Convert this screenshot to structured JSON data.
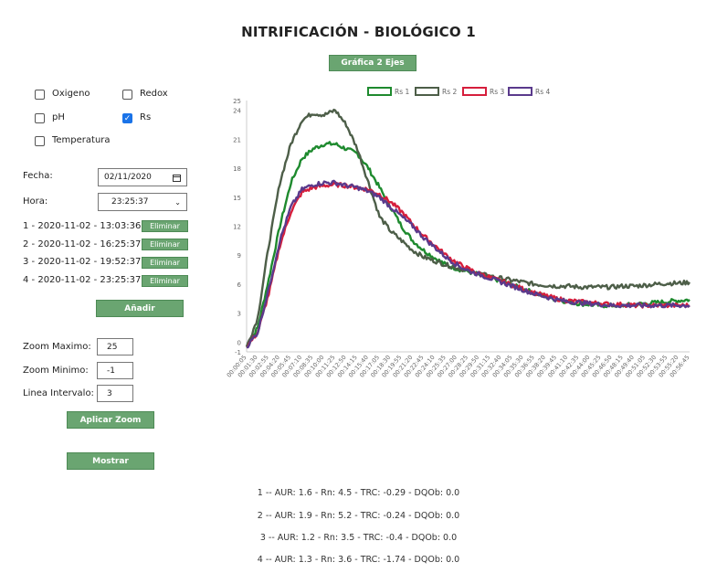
{
  "title": "NITRIFICACIÓN - BIOLÓGICO 1",
  "top_button": "Gráfica 2 Ejes",
  "checkboxes": {
    "oxigeno": {
      "label": "Oxigeno",
      "checked": false
    },
    "redox": {
      "label": "Redox",
      "checked": false
    },
    "ph": {
      "label": "pH",
      "checked": false
    },
    "rs": {
      "label": "Rs",
      "checked": true
    },
    "temperatura": {
      "label": "Temperatura",
      "checked": false
    }
  },
  "fecha": {
    "label": "Fecha:",
    "value": "02/11/2020"
  },
  "hora": {
    "label": "Hora:",
    "value": "23:25:37"
  },
  "records": [
    {
      "text": "1 - 2020-11-02 - 13:03:36",
      "button": "Eliminar"
    },
    {
      "text": "2 - 2020-11-02 - 16:25:37",
      "button": "Eliminar"
    },
    {
      "text": "3 - 2020-11-02 - 19:52:37",
      "button": "Eliminar"
    },
    {
      "text": "4 - 2020-11-02 - 23:25:37",
      "button": "Eliminar"
    }
  ],
  "add_button": "Añadir",
  "zoom": {
    "max_label": "Zoom Maximo:",
    "max_value": "25",
    "min_label": "Zoom Minimo:",
    "min_value": "-1",
    "interval_label": "Linea Intervalo:",
    "interval_value": "3"
  },
  "apply_zoom_button": "Aplicar Zoom",
  "show_button": "Mostrar",
  "results": [
    "1 -- AUR: 1.6 - Rn: 4.5 - TRC: -0.29 - DQOb: 0.0",
    "2 -- AUR: 1.9 - Rn: 5.2 - TRC: -0.24 - DQOb: 0.0",
    "3 -- AUR: 1.2 - Rn: 3.5 - TRC: -0.4 - DQOb: 0.0",
    "4 -- AUR: 1.3 - Rn: 3.6 - TRC: -1.74 - DQOb: 0.0"
  ],
  "chart_data": {
    "type": "line",
    "title": "",
    "xlabel": "",
    "ylabel": "",
    "ylim": [
      -1,
      25
    ],
    "y_ticks": [
      -1,
      0,
      3,
      6,
      9,
      12,
      15,
      18,
      21,
      24,
      25
    ],
    "x_ticks": [
      "00:00:05",
      "00:01:30",
      "00:02:55",
      "00:04:20",
      "00:05:45",
      "00:07:10",
      "00:08:35",
      "00:10:00",
      "00:11:25",
      "00:12:50",
      "00:14:15",
      "00:15:40",
      "00:17:05",
      "00:18:30",
      "00:19:55",
      "00:21:20",
      "00:22:45",
      "00:24:10",
      "00:25:35",
      "00:27:00",
      "00:28:25",
      "00:29:50",
      "00:31:15",
      "00:32:40",
      "00:34:05",
      "00:35:30",
      "00:36:55",
      "00:38:20",
      "00:39:45",
      "00:41:10",
      "00:42:35",
      "00:44:00",
      "00:45:25",
      "00:46:50",
      "00:48:15",
      "00:49:40",
      "00:51:05",
      "00:52:30",
      "00:53:55",
      "00:55:20",
      "00:56:45"
    ],
    "legend_position": "top",
    "grid": false,
    "series": [
      {
        "name": "Rs 1",
        "color": "#1e8a2e",
        "values": [
          -0.5,
          1.5,
          6.5,
          12,
          16.5,
          19,
          20,
          20.5,
          20.5,
          20,
          19.5,
          18,
          16,
          14,
          12,
          10.5,
          9.5,
          8.7,
          8,
          7.6,
          7.3,
          7,
          6.7,
          6.3,
          5.9,
          5.5,
          5.1,
          4.7,
          4.4,
          4.2,
          4.0,
          3.9,
          3.8,
          3.8,
          3.8,
          3.9,
          4.0,
          4.1,
          4.2,
          4.3,
          4.4
        ]
      },
      {
        "name": "Rs 2",
        "color": "#4d5e48",
        "values": [
          -0.5,
          2.5,
          10,
          16.5,
          20.5,
          23,
          23.7,
          23.5,
          24,
          22.5,
          20,
          16.5,
          13,
          11.5,
          10.5,
          9.5,
          8.8,
          8.4,
          8,
          7.7,
          7.4,
          7.1,
          6.8,
          6.6,
          6.4,
          6.2,
          6.0,
          5.9,
          5.8,
          5.8,
          5.7,
          5.7,
          5.7,
          5.7,
          5.8,
          5.8,
          5.9,
          6.0,
          6.1,
          6.1,
          6.2
        ]
      },
      {
        "name": "Rs 3",
        "color": "#d61e3c",
        "values": [
          -0.5,
          1,
          5,
          10,
          13.5,
          15.5,
          16,
          16.2,
          16.3,
          16.2,
          16,
          15.8,
          15.3,
          14.5,
          13.5,
          12.2,
          11,
          10,
          9,
          8.2,
          7.6,
          7.1,
          6.7,
          6.3,
          5.9,
          5.5,
          5.1,
          4.8,
          4.5,
          4.3,
          4.2,
          4.1,
          4.0,
          3.9,
          3.9,
          3.8,
          3.8,
          3.8,
          3.8,
          3.8,
          3.8
        ]
      },
      {
        "name": "Rs 4",
        "color": "#5a3a8c",
        "values": [
          -0.5,
          1,
          5.5,
          10.5,
          14,
          15.8,
          16.3,
          16.5,
          16.5,
          16.2,
          16,
          15.6,
          15,
          14,
          13,
          12,
          10.8,
          9.8,
          8.8,
          8.0,
          7.4,
          7.0,
          6.6,
          6.2,
          5.8,
          5.4,
          5.0,
          4.7,
          4.4,
          4.2,
          4.1,
          4.0,
          3.9,
          3.8,
          3.8,
          3.8,
          3.8,
          3.8,
          3.8,
          3.8,
          3.8
        ]
      }
    ]
  }
}
